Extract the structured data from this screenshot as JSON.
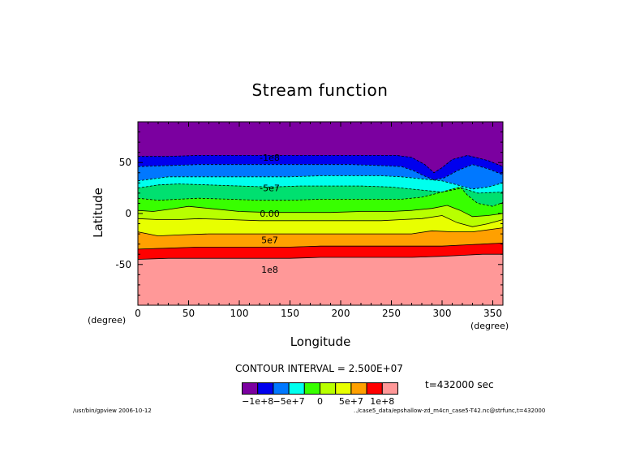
{
  "chart_data": {
    "type": "contour",
    "title": "Stream function",
    "xlabel": "Longitude",
    "ylabel": "Latitude",
    "x_unit": "(degree)",
    "y_unit": "(degree)",
    "xlim": [
      0,
      360
    ],
    "ylim": [
      -90,
      90
    ],
    "xticks": [
      0,
      50,
      100,
      150,
      200,
      250,
      300,
      350
    ],
    "yticks": [
      50,
      0,
      -50
    ],
    "contour_interval_text": "CONTOUR INTERVAL = 2.500E+07",
    "time_label": "t=432000 sec",
    "colorbar_labels": [
      "−1e+8",
      "−5e+7",
      "0",
      "5e+7",
      "1e+8"
    ],
    "band_colors": [
      "#7b00a0",
      "#0000ee",
      "#0078ff",
      "#00ffee",
      "#00e070",
      "#38ff00",
      "#b8ff00",
      "#e8ff00",
      "#ffa000",
      "#ff0000",
      "#ff9898"
    ],
    "contour_labels": [
      {
        "lon": 130,
        "lat": 55,
        "text": "-1e8"
      },
      {
        "lon": 130,
        "lat": 25,
        "text": "-5e7"
      },
      {
        "lon": 130,
        "lat": 0,
        "text": "0.00"
      },
      {
        "lon": 130,
        "lat": -26,
        "text": "5e7"
      },
      {
        "lon": 130,
        "lat": -55,
        "text": "1e8"
      }
    ],
    "contour_lines_lat": [
      [
        [
          0,
          56
        ],
        [
          30,
          56
        ],
        [
          60,
          57
        ],
        [
          90,
          57
        ],
        [
          120,
          57
        ],
        [
          150,
          57
        ],
        [
          180,
          57
        ],
        [
          210,
          57
        ],
        [
          240,
          57
        ],
        [
          255,
          57
        ],
        [
          270,
          55
        ],
        [
          283,
          48
        ],
        [
          292,
          40
        ],
        [
          300,
          45
        ],
        [
          310,
          53
        ],
        [
          325,
          57
        ],
        [
          345,
          52
        ],
        [
          360,
          46
        ]
      ],
      [
        [
          0,
          46
        ],
        [
          30,
          47
        ],
        [
          60,
          48
        ],
        [
          90,
          48
        ],
        [
          120,
          48
        ],
        [
          150,
          48
        ],
        [
          180,
          48
        ],
        [
          210,
          48
        ],
        [
          240,
          47
        ],
        [
          260,
          46
        ],
        [
          272,
          42
        ],
        [
          282,
          37
        ],
        [
          292,
          33
        ],
        [
          302,
          35
        ],
        [
          315,
          42
        ],
        [
          330,
          48
        ],
        [
          345,
          44
        ],
        [
          360,
          38
        ]
      ],
      [
        [
          0,
          32
        ],
        [
          30,
          36
        ],
        [
          60,
          36
        ],
        [
          90,
          36
        ],
        [
          120,
          36
        ],
        [
          150,
          36
        ],
        [
          180,
          37
        ],
        [
          210,
          37
        ],
        [
          240,
          37
        ],
        [
          260,
          36
        ],
        [
          280,
          34
        ],
        [
          300,
          32
        ],
        [
          315,
          28
        ],
        [
          330,
          24
        ],
        [
          345,
          26
        ],
        [
          360,
          30
        ]
      ],
      [
        [
          0,
          25
        ],
        [
          20,
          28
        ],
        [
          40,
          29
        ],
        [
          70,
          28
        ],
        [
          100,
          27
        ],
        [
          130,
          26
        ],
        [
          160,
          27
        ],
        [
          190,
          27
        ],
        [
          220,
          27
        ],
        [
          250,
          26
        ],
        [
          270,
          24
        ],
        [
          290,
          22
        ],
        [
          300,
          21
        ],
        [
          310,
          23
        ],
        [
          320,
          25
        ],
        [
          335,
          20
        ],
        [
          360,
          21
        ]
      ],
      [
        [
          0,
          15
        ],
        [
          20,
          13
        ],
        [
          40,
          14
        ],
        [
          60,
          15
        ],
        [
          90,
          14
        ],
        [
          120,
          13
        ],
        [
          150,
          13
        ],
        [
          180,
          14
        ],
        [
          210,
          14
        ],
        [
          240,
          14
        ],
        [
          260,
          14
        ],
        [
          280,
          16
        ],
        [
          300,
          21
        ],
        [
          310,
          24
        ],
        [
          318,
          26
        ],
        [
          325,
          18
        ],
        [
          335,
          10
        ],
        [
          350,
          7
        ],
        [
          360,
          11
        ]
      ],
      [
        [
          0,
          3
        ],
        [
          15,
          2
        ],
        [
          30,
          4
        ],
        [
          50,
          7
        ],
        [
          70,
          5
        ],
        [
          100,
          2
        ],
        [
          130,
          1
        ],
        [
          160,
          1
        ],
        [
          190,
          1
        ],
        [
          220,
          2
        ],
        [
          250,
          2
        ],
        [
          270,
          3
        ],
        [
          290,
          5
        ],
        [
          305,
          8
        ],
        [
          318,
          3
        ],
        [
          330,
          -3
        ],
        [
          345,
          -2
        ],
        [
          360,
          0
        ]
      ],
      [
        [
          0,
          -5
        ],
        [
          20,
          -6
        ],
        [
          40,
          -6
        ],
        [
          60,
          -5
        ],
        [
          90,
          -6
        ],
        [
          120,
          -7
        ],
        [
          150,
          -7
        ],
        [
          180,
          -7
        ],
        [
          210,
          -7
        ],
        [
          240,
          -7
        ],
        [
          260,
          -6
        ],
        [
          280,
          -5
        ],
        [
          300,
          -2
        ],
        [
          315,
          -9
        ],
        [
          330,
          -13
        ],
        [
          345,
          -10
        ],
        [
          360,
          -6
        ]
      ],
      [
        [
          0,
          -18
        ],
        [
          20,
          -22
        ],
        [
          40,
          -21
        ],
        [
          70,
          -20
        ],
        [
          100,
          -20
        ],
        [
          130,
          -20
        ],
        [
          160,
          -20
        ],
        [
          190,
          -20
        ],
        [
          220,
          -20
        ],
        [
          250,
          -20
        ],
        [
          270,
          -20
        ],
        [
          290,
          -17
        ],
        [
          310,
          -18
        ],
        [
          330,
          -18
        ],
        [
          345,
          -16
        ],
        [
          360,
          -14
        ]
      ],
      [
        [
          0,
          -35
        ],
        [
          30,
          -34
        ],
        [
          60,
          -33
        ],
        [
          90,
          -33
        ],
        [
          120,
          -33
        ],
        [
          150,
          -33
        ],
        [
          180,
          -32
        ],
        [
          210,
          -32
        ],
        [
          240,
          -32
        ],
        [
          270,
          -32
        ],
        [
          300,
          -32
        ],
        [
          320,
          -31
        ],
        [
          340,
          -30
        ],
        [
          360,
          -29
        ]
      ],
      [
        [
          0,
          -45
        ],
        [
          30,
          -44
        ],
        [
          60,
          -44
        ],
        [
          90,
          -44
        ],
        [
          120,
          -44
        ],
        [
          150,
          -44
        ],
        [
          180,
          -43
        ],
        [
          210,
          -43
        ],
        [
          240,
          -43
        ],
        [
          270,
          -43
        ],
        [
          300,
          -42
        ],
        [
          320,
          -41
        ],
        [
          340,
          -40
        ],
        [
          360,
          -40
        ]
      ]
    ]
  },
  "footer_left": "/usr/bin/gpview  2006-10-12",
  "footer_right": "../case5_data/epshallow-zd_m4cn_case5-T42.nc@strfunc,t=432000"
}
